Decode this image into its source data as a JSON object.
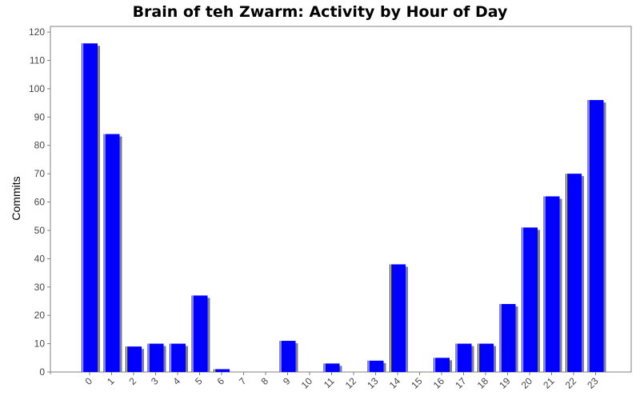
{
  "chart_data": {
    "type": "bar",
    "title": "Brain of teh Zwarm: Activity by Hour of Day",
    "xlabel": "",
    "ylabel": "Commits",
    "categories": [
      "0",
      "1",
      "2",
      "3",
      "4",
      "5",
      "6",
      "7",
      "8",
      "9",
      "10",
      "11",
      "12",
      "13",
      "14",
      "15",
      "16",
      "17",
      "18",
      "19",
      "20",
      "21",
      "22",
      "23"
    ],
    "values": [
      116,
      84,
      9,
      10,
      10,
      27,
      1,
      0,
      0,
      11,
      0,
      3,
      0,
      4,
      38,
      0,
      5,
      10,
      10,
      24,
      51,
      62,
      70,
      96
    ],
    "ylim": [
      0,
      122
    ],
    "yticks": [
      0,
      10,
      20,
      30,
      40,
      50,
      60,
      70,
      80,
      90,
      100,
      110,
      120
    ],
    "grid": false,
    "legend": "none",
    "colors": {
      "bar": "#0000ff",
      "shadow": "#808080",
      "highlight": "#ffffff",
      "axis": "#808080"
    }
  }
}
